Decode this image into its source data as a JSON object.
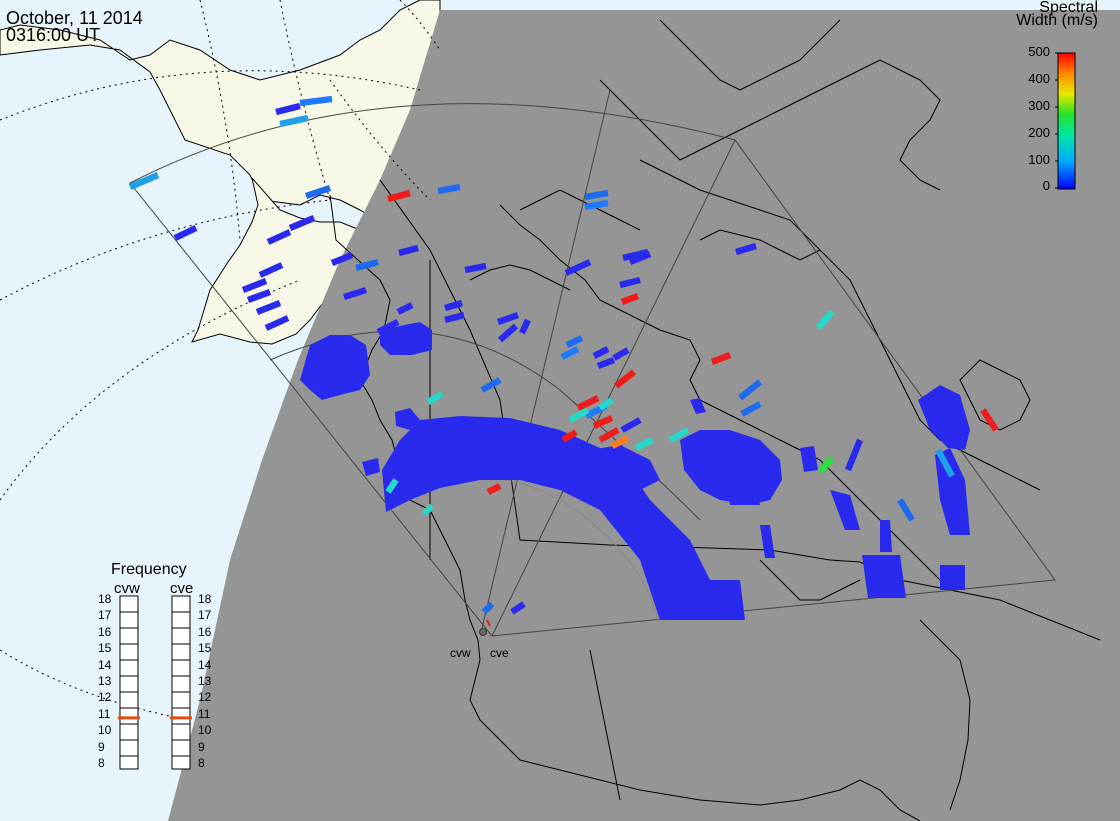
{
  "header": {
    "date": "October, 11 2014",
    "time": "0316:00 UT"
  },
  "colorbar": {
    "title_line1": "Spectral",
    "title_line2": "Width (m/s)",
    "ticks": [
      "500",
      "400",
      "300",
      "200",
      "100",
      "0"
    ],
    "min": 0,
    "max": 500
  },
  "frequency_panel": {
    "title": "Frequency",
    "radars": [
      {
        "name": "cvw",
        "frequency_mhz": 10.6
      },
      {
        "name": "cve",
        "frequency_mhz": 10.6
      }
    ],
    "ticks": [
      "18",
      "17",
      "16",
      "15",
      "14",
      "13",
      "12",
      "11",
      "10",
      "9",
      "8"
    ],
    "min": 8,
    "max": 18
  },
  "stations": [
    {
      "label": "cvw"
    },
    {
      "label": "cve"
    }
  ],
  "colors": {
    "land": "#f8f8e8",
    "ocean": "#e8f4fb",
    "night": "#959595",
    "marker": "#e84c0c"
  },
  "cells": [
    [
      300,
      103,
      332,
      99,
      "#1e7bff"
    ],
    [
      276,
      112,
      300,
      106,
      "#2a2aee"
    ],
    [
      280,
      124,
      308,
      118,
      "#1e9fe8"
    ],
    [
      130,
      187,
      158,
      175,
      "#1e9fe8"
    ],
    [
      175,
      238,
      196,
      228,
      "#2a2aee"
    ],
    [
      268,
      242,
      290,
      232,
      "#2a2aee"
    ],
    [
      290,
      228,
      314,
      218,
      "#2a2aee"
    ],
    [
      306,
      196,
      330,
      188,
      "#1e6af0"
    ],
    [
      388,
      199,
      410,
      193,
      "#ee1c1c"
    ],
    [
      438,
      191,
      460,
      187,
      "#1e6af0"
    ],
    [
      585,
      197,
      608,
      193,
      "#1e6af0"
    ],
    [
      585,
      207,
      608,
      203,
      "#1e7bff"
    ],
    [
      260,
      275,
      282,
      265,
      "#2a2aee"
    ],
    [
      243,
      290,
      266,
      281,
      "#2a2aee"
    ],
    [
      248,
      300,
      270,
      292,
      "#2a2aee"
    ],
    [
      257,
      312,
      280,
      303,
      "#2a2aee"
    ],
    [
      266,
      328,
      288,
      318,
      "#2a2aee"
    ],
    [
      332,
      263,
      352,
      255,
      "#2a2aee"
    ],
    [
      356,
      268,
      378,
      262,
      "#1e6af0"
    ],
    [
      399,
      253,
      418,
      248,
      "#2a2aee"
    ],
    [
      465,
      270,
      486,
      266,
      "#2a2aee"
    ],
    [
      566,
      273,
      590,
      262,
      "#2a2aee"
    ],
    [
      623,
      258,
      648,
      252,
      "#2a2aee"
    ],
    [
      344,
      297,
      366,
      290,
      "#2a2aee"
    ],
    [
      378,
      332,
      398,
      322,
      "#2a2aee"
    ],
    [
      398,
      312,
      412,
      305,
      "#2a2aee"
    ],
    [
      445,
      308,
      462,
      303,
      "#2a2aee"
    ],
    [
      445,
      320,
      464,
      315,
      "#2a2aee"
    ],
    [
      498,
      322,
      518,
      315,
      "#2a2aee"
    ],
    [
      500,
      340,
      516,
      326,
      "#2a2aee"
    ],
    [
      522,
      333,
      528,
      320,
      "#2a2aee"
    ],
    [
      567,
      345,
      582,
      338,
      "#1e6af0"
    ],
    [
      562,
      357,
      578,
      349,
      "#1e7bff"
    ],
    [
      594,
      356,
      608,
      349,
      "#2a2aee"
    ],
    [
      598,
      366,
      614,
      360,
      "#2a2aee"
    ],
    [
      614,
      358,
      628,
      350,
      "#2a2aee"
    ],
    [
      622,
      302,
      638,
      296,
      "#ee1c1c"
    ],
    [
      620,
      285,
      640,
      280,
      "#2a2aee"
    ],
    [
      630,
      262,
      650,
      254,
      "#2a2aee"
    ],
    [
      736,
      252,
      756,
      246,
      "#2a2aee"
    ],
    [
      818,
      328,
      832,
      312,
      "#25d8c8"
    ],
    [
      712,
      362,
      730,
      355,
      "#ee1c1c"
    ],
    [
      740,
      398,
      760,
      382,
      "#1e6af0"
    ],
    [
      616,
      386,
      634,
      372,
      "#ee1c1c"
    ],
    [
      586,
      416,
      606,
      406,
      "#1e7bff"
    ],
    [
      578,
      408,
      598,
      398,
      "#ee1c1c"
    ],
    [
      570,
      420,
      588,
      410,
      "#25d8c8"
    ],
    [
      594,
      426,
      612,
      418,
      "#ee1c1c"
    ],
    [
      600,
      440,
      618,
      430,
      "#ee1c1c"
    ],
    [
      563,
      440,
      576,
      432,
      "#ee1c1c"
    ],
    [
      612,
      446,
      628,
      438,
      "#ff7a1c"
    ],
    [
      622,
      430,
      640,
      420,
      "#2a2aee"
    ],
    [
      636,
      448,
      652,
      440,
      "#25d8c8"
    ],
    [
      670,
      440,
      688,
      430,
      "#25d8c8"
    ],
    [
      742,
      414,
      760,
      404,
      "#1e6af0"
    ],
    [
      820,
      472,
      832,
      458,
      "#2be03a"
    ],
    [
      848,
      470,
      860,
      440,
      "#2a2aee"
    ],
    [
      983,
      410,
      996,
      430,
      "#ee1c1c"
    ],
    [
      938,
      450,
      952,
      476,
      "#1e9fe8"
    ],
    [
      900,
      500,
      912,
      520,
      "#1e6af0"
    ],
    [
      482,
      390,
      500,
      380,
      "#1e6af0"
    ],
    [
      428,
      402,
      442,
      394,
      "#25d8c8"
    ],
    [
      388,
      492,
      396,
      480,
      "#25d8c8"
    ],
    [
      488,
      492,
      500,
      486,
      "#ee1c1c"
    ],
    [
      424,
      514,
      432,
      506,
      "#25d8c8"
    ],
    [
      600,
      408,
      612,
      400,
      "#25d8c8"
    ],
    [
      484,
      612,
      492,
      604,
      "#1e6af0"
    ],
    [
      512,
      612,
      524,
      604,
      "#2a2aee"
    ]
  ]
}
